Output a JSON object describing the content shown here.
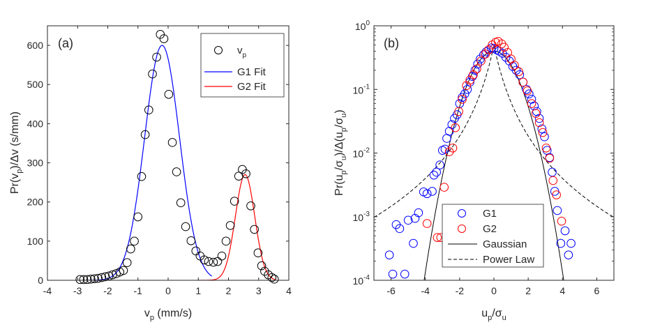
{
  "chart_data": [
    {
      "type": "scatter",
      "panel_label": "(a)",
      "xlabel": "v_p (mm/s)",
      "ylabel": "Pr(v_p)/Δv (s/mm)",
      "xlim": [
        -4,
        4
      ],
      "ylim": [
        0,
        650
      ],
      "xticks": [
        -4,
        -3,
        -2,
        -1,
        0,
        1,
        2,
        3,
        4
      ],
      "yticks": [
        0,
        100,
        200,
        300,
        400,
        500,
        600
      ],
      "legend": {
        "placement": "top-right",
        "entries": [
          "v_p",
          "G1 Fit",
          "G2 Fit"
        ]
      },
      "colors": {
        "data": "#000000",
        "g1": "#0000ff",
        "g2": "#ff0000"
      },
      "series": [
        {
          "name": "v_p",
          "marker": "circle",
          "points": [
            [
              -2.92,
              2
            ],
            [
              -2.8,
              2
            ],
            [
              -2.68,
              2
            ],
            [
              -2.56,
              3
            ],
            [
              -2.44,
              4
            ],
            [
              -2.32,
              5
            ],
            [
              -2.2,
              7
            ],
            [
              -2.08,
              9
            ],
            [
              -1.96,
              11
            ],
            [
              -1.84,
              14
            ],
            [
              -1.72,
              17
            ],
            [
              -1.6,
              21
            ],
            [
              -1.48,
              25
            ],
            [
              -1.36,
              45
            ],
            [
              -1.24,
              80
            ],
            [
              -1.12,
              100
            ],
            [
              -1.0,
              162
            ],
            [
              -0.88,
              265
            ],
            [
              -0.76,
              372
            ],
            [
              -0.64,
              435
            ],
            [
              -0.52,
              527
            ],
            [
              -0.38,
              570
            ],
            [
              -0.26,
              628
            ],
            [
              -0.14,
              617
            ],
            [
              0.02,
              475
            ],
            [
              0.14,
              352
            ],
            [
              0.28,
              277
            ],
            [
              0.42,
              198
            ],
            [
              0.58,
              137
            ],
            [
              0.76,
              101
            ],
            [
              0.92,
              75
            ],
            [
              1.06,
              62
            ],
            [
              1.2,
              52
            ],
            [
              1.34,
              48
            ],
            [
              1.5,
              46
            ],
            [
              1.64,
              48
            ],
            [
              1.78,
              62
            ],
            [
              1.92,
              100
            ],
            [
              2.06,
              140
            ],
            [
              2.2,
              202
            ],
            [
              2.34,
              266
            ],
            [
              2.46,
              283
            ],
            [
              2.58,
              272
            ],
            [
              2.74,
              190
            ],
            [
              2.86,
              130
            ],
            [
              2.98,
              70
            ],
            [
              3.1,
              37
            ],
            [
              3.2,
              23
            ],
            [
              3.32,
              14
            ],
            [
              3.44,
              7
            ],
            [
              3.52,
              3
            ]
          ]
        },
        {
          "name": "G1 Fit",
          "model": "gaussian",
          "amplitude": 600,
          "mean": -0.2,
          "sigma": 0.58,
          "range": [
            -2.8,
            1.45
          ]
        },
        {
          "name": "G2 Fit",
          "model": "gaussian",
          "amplitude": 270,
          "mean": 2.55,
          "sigma": 0.32,
          "range": [
            0.95,
            3.55
          ]
        }
      ]
    },
    {
      "type": "scatter",
      "panel_label": "(b)",
      "xlabel": "u_p/σ_u",
      "ylabel": "Pr(u_p/σ_u)/Δ(u_p/σ_u)",
      "xscale": "linear",
      "yscale": "log",
      "xlim": [
        -7,
        7
      ],
      "ylim": [
        0.0001,
        1
      ],
      "xticks": [
        -6,
        -4,
        -2,
        0,
        2,
        4,
        6
      ],
      "yticks": [
        0.0001,
        0.001,
        0.01,
        0.1,
        1
      ],
      "ytick_labels": [
        [
          "10",
          "-4"
        ],
        [
          "10",
          "-3"
        ],
        [
          "10",
          "-2"
        ],
        [
          "10",
          "-1"
        ],
        [
          "10",
          "0"
        ]
      ],
      "legend": {
        "placement": "bottom-center",
        "entries": [
          "G1",
          "G2",
          "Gaussian",
          "Power Law"
        ]
      },
      "colors": {
        "g1": "#0000ff",
        "g2": "#ff0000",
        "gaussian": "#000000",
        "power_law": "#000000"
      },
      "series": [
        {
          "name": "G1",
          "marker": "circle",
          "points": [
            [
              -6.1,
              0.00025
            ],
            [
              -5.9,
              0.000125
            ],
            [
              -5.7,
              0.00075
            ],
            [
              -5.5,
              0.00065
            ],
            [
              -5.2,
              0.000125
            ],
            [
              -5.0,
              0.00088
            ],
            [
              -4.7,
              0.00038
            ],
            [
              -4.6,
              0.00094
            ],
            [
              -4.4,
              0.00115
            ],
            [
              -4.1,
              0.00245
            ],
            [
              -3.9,
              0.0023
            ],
            [
              -3.6,
              0.0025
            ],
            [
              -3.5,
              0.0045
            ],
            [
              -3.35,
              0.005
            ],
            [
              -3.15,
              0.0065
            ],
            [
              -3.0,
              0.011
            ],
            [
              -2.85,
              0.0115
            ],
            [
              -2.75,
              0.017
            ],
            [
              -2.6,
              0.022
            ],
            [
              -2.45,
              0.028
            ],
            [
              -2.3,
              0.035
            ],
            [
              -2.15,
              0.04
            ],
            [
              -2.0,
              0.06
            ],
            [
              -1.85,
              0.075
            ],
            [
              -1.7,
              0.085
            ],
            [
              -1.55,
              0.1
            ],
            [
              -1.4,
              0.13
            ],
            [
              -1.25,
              0.16
            ],
            [
              -1.1,
              0.2
            ],
            [
              -0.95,
              0.25
            ],
            [
              -0.8,
              0.3
            ],
            [
              -0.6,
              0.35
            ],
            [
              -0.45,
              0.39
            ],
            [
              -0.3,
              0.42
            ],
            [
              -0.15,
              0.45
            ],
            [
              0.0,
              0.44
            ],
            [
              0.15,
              0.42
            ],
            [
              0.3,
              0.4
            ],
            [
              0.5,
              0.37
            ],
            [
              0.7,
              0.32
            ],
            [
              0.9,
              0.28
            ],
            [
              1.1,
              0.23
            ],
            [
              1.3,
              0.2
            ],
            [
              1.5,
              0.17
            ],
            [
              1.7,
              0.13
            ],
            [
              1.9,
              0.1
            ],
            [
              2.05,
              0.085
            ],
            [
              2.2,
              0.07
            ],
            [
              2.35,
              0.055
            ],
            [
              2.5,
              0.045
            ],
            [
              2.65,
              0.035
            ],
            [
              2.8,
              0.024
            ],
            [
              2.95,
              0.018
            ],
            [
              3.1,
              0.011
            ],
            [
              3.25,
              0.0085
            ],
            [
              3.4,
              0.005
            ],
            [
              3.55,
              0.0025
            ],
            [
              3.7,
              0.00125
            ],
            [
              3.9,
              0.00038
            ],
            [
              4.15,
              0.0006
            ],
            [
              4.35,
              0.00025
            ],
            [
              4.5,
              0.00038
            ]
          ]
        },
        {
          "name": "G2",
          "marker": "circle",
          "points": [
            [
              -3.9,
              0.00078
            ],
            [
              -3.3,
              0.00047
            ],
            [
              -3.1,
              0.00047
            ],
            [
              -2.9,
              0.0029
            ],
            [
              -2.6,
              0.0105
            ],
            [
              -2.4,
              0.012
            ],
            [
              -2.25,
              0.025
            ],
            [
              -2.05,
              0.045
            ],
            [
              -1.85,
              0.07
            ],
            [
              -1.6,
              0.115
            ],
            [
              -1.4,
              0.14
            ],
            [
              -1.2,
              0.17
            ],
            [
              -1.0,
              0.21
            ],
            [
              -0.75,
              0.28
            ],
            [
              -0.5,
              0.36
            ],
            [
              -0.3,
              0.42
            ],
            [
              -0.1,
              0.5
            ],
            [
              0.1,
              0.55
            ],
            [
              0.25,
              0.57
            ],
            [
              0.45,
              0.52
            ],
            [
              0.6,
              0.46
            ],
            [
              0.8,
              0.38
            ],
            [
              1.0,
              0.3
            ],
            [
              1.2,
              0.24
            ],
            [
              1.45,
              0.19
            ],
            [
              1.7,
              0.13
            ],
            [
              1.95,
              0.095
            ],
            [
              2.2,
              0.06
            ],
            [
              2.45,
              0.042
            ],
            [
              2.65,
              0.03
            ],
            [
              2.85,
              0.021
            ],
            [
              3.05,
              0.012
            ],
            [
              3.25,
              0.0083
            ],
            [
              3.45,
              0.0037
            ],
            [
              3.65,
              0.0022
            ],
            [
              3.95,
              0.00085
            ]
          ]
        },
        {
          "name": "Gaussian",
          "model": "gaussian",
          "amplitude": 0.3989,
          "mean": 0,
          "sigma": 1,
          "range": [
            -4.15,
            4.15
          ]
        },
        {
          "name": "Power Law",
          "model": "power_law",
          "form": "1/(2(1+|x|)^3)",
          "range": [
            -7,
            7
          ]
        }
      ]
    }
  ]
}
